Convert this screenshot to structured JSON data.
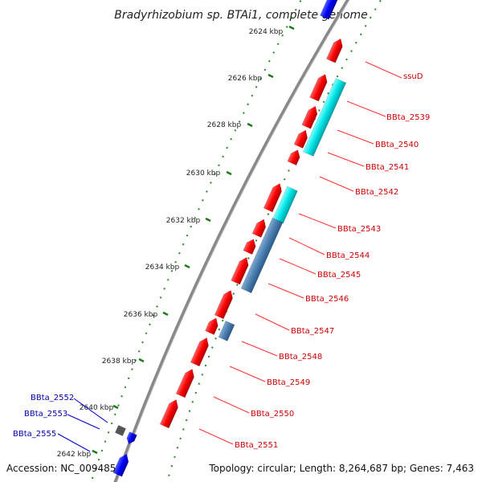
{
  "title": "Bradyrhizobium sp. BTAi1, complete genome",
  "footer": {
    "accession": "Accession: NC_009485",
    "topology": "Topology: circular; Length: 8,264,687 bp; Genes: 7,463"
  },
  "colors": {
    "forward_gene": "#ff0000",
    "reverse_gene": "#0000ff",
    "cyan_feature": "#00e5e5",
    "steel_feature": "#4a7fb0",
    "grey_feature": "#555555",
    "backbone": "#888888",
    "tick_green": "#1a7a1a"
  },
  "kbp_ticks": [
    "2624 kbp",
    "2626 kbp",
    "2628 kbp",
    "2630 kbp",
    "2632 kbp",
    "2634 kbp",
    "2636 kbp",
    "2638 kbp",
    "2640 kbp",
    "2642 kbp"
  ],
  "genes_right": [
    "ssuD",
    "BBta_2539",
    "BBta_2540",
    "BBta_2541",
    "BBta_2542",
    "BBta_2543",
    "BBta_2544",
    "BBta_2545",
    "BBta_2546",
    "BBta_2547",
    "BBta_2548",
    "BBta_2549",
    "BBta_2550",
    "BBta_2551"
  ],
  "genes_left": [
    "BBta_2552",
    "BBta_2553",
    "BBta_2555"
  ]
}
